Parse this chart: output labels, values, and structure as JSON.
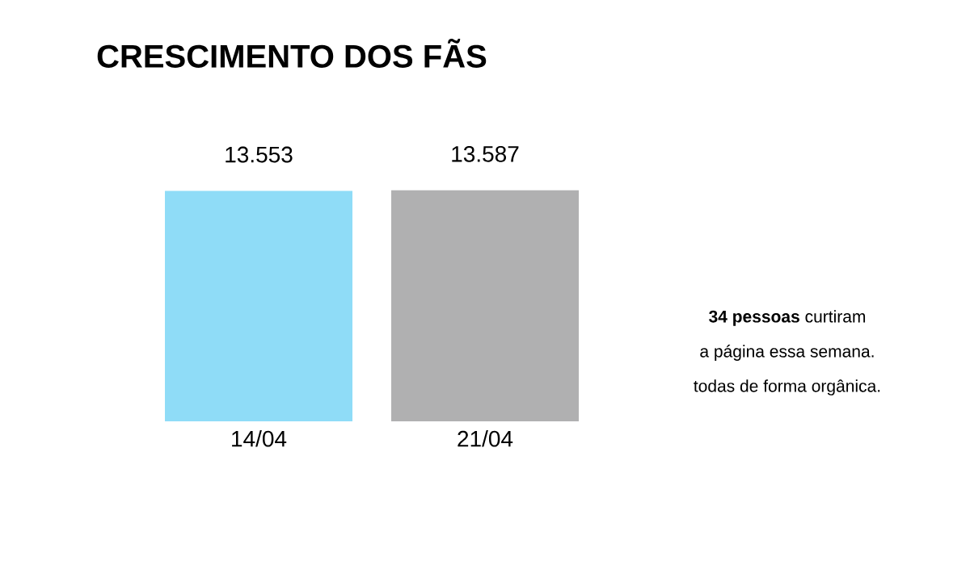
{
  "chart_data": {
    "type": "bar",
    "title": "CRESCIMENTO DOS FÃS",
    "categories": [
      "14/04",
      "21/04"
    ],
    "values": [
      13553,
      13587
    ],
    "colors": [
      "#8fdcf7",
      "#b0b0b1"
    ],
    "value_labels": [
      "13.553",
      "13.587"
    ],
    "tick_labels": "x",
    "annotations": [
      "**34 pessoas** curtiram",
      "a página essa semana.",
      "todas de forma orgânica."
    ]
  }
}
